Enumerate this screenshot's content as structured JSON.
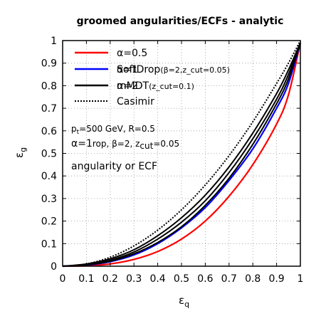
{
  "chart_data": {
    "type": "line",
    "title": "groomed angularities/ECFs - analytic",
    "xlabel_main": "ε",
    "xlabel_sub": "q",
    "ylabel_main": "ε",
    "ylabel_sub": "g",
    "xlim": [
      0,
      1
    ],
    "ylim": [
      0,
      1
    ],
    "grid": true,
    "legend_position": "top-left",
    "xticks": [
      "0",
      "0.1",
      "0.2",
      "0.3",
      "0.4",
      "0.5",
      "0.6",
      "0.7",
      "0.8",
      "0.9",
      "1"
    ],
    "yticks": [
      "0",
      "0.1",
      "0.2",
      "0.3",
      "0.4",
      "0.5",
      "0.6",
      "0.7",
      "0.8",
      "0.9",
      "1"
    ],
    "legend": [
      {
        "style": "red",
        "color": "#ff0000",
        "dash": "",
        "alpha_label": "α=0.5",
        "groomer_main": "",
        "groomer_sub": ""
      },
      {
        "style": "blue",
        "color": "#0000ff",
        "dash": "",
        "alpha_label": "α=1",
        "groomer_main": "SoftDrop",
        "groomer_sub": "(β=2,z_cut=0.05)"
      },
      {
        "style": "black",
        "color": "#000000",
        "dash": "",
        "alpha_label": "α=2",
        "groomer_main": "mMDT",
        "groomer_sub": "(z_cut=0.1)"
      },
      {
        "style": "dotted",
        "color": "#000000",
        "dash": "2,2",
        "alpha_label": "",
        "groomer_main": "Casimir",
        "groomer_sub": ""
      }
    ],
    "annotations": {
      "kin_prefix": "p",
      "kin_sub": "t",
      "kin_rest": "=500 GeV, R=0.5",
      "line2_big": "α=1",
      "line2_small": "rop, β=2, z",
      "line2_sub": "cut",
      "line2_end": "=0.05",
      "line3": "angularity or ECF"
    },
    "series": [
      {
        "style": "red",
        "color": "#ff0000",
        "width": 2.2,
        "x": [
          0,
          0.1,
          0.2,
          0.3,
          0.4,
          0.5,
          0.6,
          0.7,
          0.8,
          0.9,
          0.95,
          1.0
        ],
        "y": [
          0,
          0.002,
          0.01,
          0.03,
          0.065,
          0.12,
          0.2,
          0.31,
          0.45,
          0.63,
          0.76,
          0.99
        ]
      },
      {
        "style": "blue",
        "color": "#0000ff",
        "width": 2.2,
        "x": [
          0,
          0.1,
          0.2,
          0.3,
          0.4,
          0.5,
          0.6,
          0.7,
          0.8,
          0.9,
          0.95,
          1.0
        ],
        "y": [
          0,
          0.005,
          0.02,
          0.05,
          0.1,
          0.17,
          0.26,
          0.38,
          0.52,
          0.7,
          0.81,
          0.99
        ]
      },
      {
        "style": "black",
        "color": "#000000",
        "width": 2.0,
        "x": [
          0,
          0.1,
          0.2,
          0.3,
          0.4,
          0.5,
          0.6,
          0.7,
          0.8,
          0.9,
          0.95,
          1.0
        ],
        "y": [
          0,
          0.006,
          0.022,
          0.055,
          0.105,
          0.175,
          0.27,
          0.39,
          0.54,
          0.72,
          0.83,
          0.99
        ]
      },
      {
        "style": "black",
        "color": "#000000",
        "width": 2.0,
        "x": [
          0,
          0.1,
          0.2,
          0.3,
          0.4,
          0.5,
          0.6,
          0.7,
          0.8,
          0.9,
          0.95,
          1.0
        ],
        "y": [
          0,
          0.008,
          0.027,
          0.063,
          0.12,
          0.195,
          0.29,
          0.415,
          0.565,
          0.74,
          0.85,
          0.99
        ]
      },
      {
        "style": "black",
        "color": "#000000",
        "width": 2.0,
        "x": [
          0,
          0.1,
          0.2,
          0.3,
          0.4,
          0.5,
          0.6,
          0.7,
          0.8,
          0.9,
          0.95,
          1.0
        ],
        "y": [
          0,
          0.01,
          0.033,
          0.073,
          0.135,
          0.215,
          0.315,
          0.44,
          0.59,
          0.765,
          0.87,
          0.99
        ]
      },
      {
        "style": "dotted",
        "color": "#000000",
        "width": 2.0,
        "dash": "2,2",
        "x": [
          0,
          0.1,
          0.2,
          0.3,
          0.4,
          0.5,
          0.6,
          0.7,
          0.8,
          0.9,
          0.95,
          1.0
        ],
        "y": [
          0,
          0.01,
          0.04,
          0.09,
          0.16,
          0.25,
          0.36,
          0.49,
          0.64,
          0.81,
          0.9,
          1.0
        ]
      }
    ]
  }
}
